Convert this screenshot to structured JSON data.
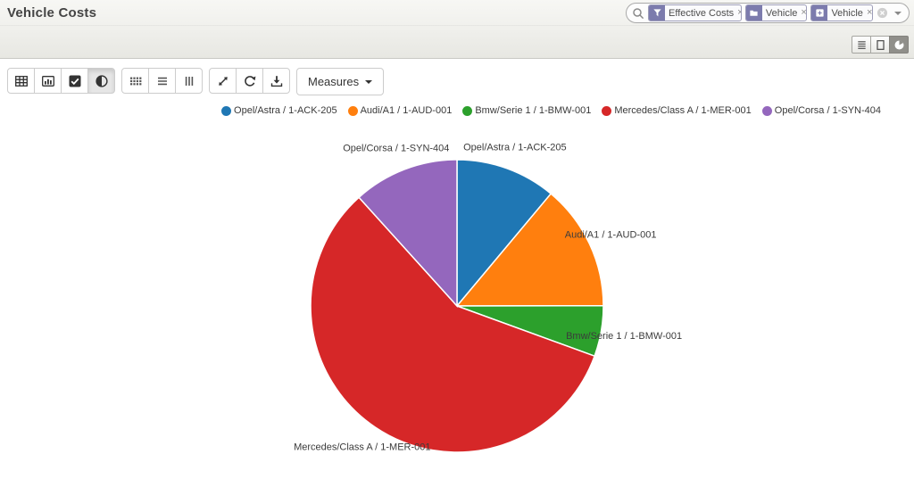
{
  "header": {
    "title": "Vehicle Costs"
  },
  "search": {
    "facets": [
      {
        "icon": "filter-icon",
        "label": "Effective Costs",
        "remove": "×"
      },
      {
        "icon": "folder-icon",
        "label": "Vehicle",
        "remove": "×"
      },
      {
        "icon": "plus-square-icon",
        "label": "Vehicle",
        "remove": "×"
      }
    ],
    "clear_icon": "circle-x-icon",
    "dropdown_icon": "caret-down-icon"
  },
  "view_switcher": {
    "buttons": [
      {
        "name": "list",
        "icon": "list-icon",
        "active": false
      },
      {
        "name": "form",
        "icon": "form-icon",
        "active": false
      },
      {
        "name": "graph",
        "icon": "pie-chart-icon",
        "active": true
      }
    ]
  },
  "toolbar": {
    "groups": [
      {
        "name": "chart-type",
        "buttons": [
          {
            "name": "pivot-view",
            "icon": "table-icon",
            "active": false
          },
          {
            "name": "bar-chart",
            "icon": "bar-chart-icon",
            "active": false
          },
          {
            "name": "line-chart",
            "icon": "check-square-icon",
            "active": false
          },
          {
            "name": "pie-chart",
            "icon": "contrast-icon",
            "active": true
          }
        ]
      },
      {
        "name": "layout",
        "buttons": [
          {
            "name": "grid",
            "icon": "th-icon"
          },
          {
            "name": "rows",
            "icon": "bars-icon"
          },
          {
            "name": "columns",
            "icon": "columns-icon"
          }
        ]
      },
      {
        "name": "actions",
        "buttons": [
          {
            "name": "expand",
            "icon": "expand-arrow-icon"
          },
          {
            "name": "refresh",
            "icon": "refresh-icon"
          },
          {
            "name": "download",
            "icon": "download-icon"
          }
        ]
      }
    ],
    "measures_label": "Measures"
  },
  "chart_data": {
    "type": "pie",
    "title": "",
    "legend_position": "top-right",
    "labels": "outside",
    "values_are": "percent_share",
    "series": [
      {
        "name": "Opel/Astra / 1-ACK-205",
        "value": 11.1,
        "color": "#1f77b4"
      },
      {
        "name": "Audi/A1 / 1-AUD-001",
        "value": 13.9,
        "color": "#ff7f0e"
      },
      {
        "name": "Bmw/Serie 1 / 1-BMW-001",
        "value": 5.6,
        "color": "#2ca02c"
      },
      {
        "name": "Mercedes/Class A / 1-MER-001",
        "value": 57.8,
        "color": "#d62728"
      },
      {
        "name": "Opel/Corsa / 1-SYN-404",
        "value": 11.7,
        "color": "#9467bd"
      }
    ]
  }
}
